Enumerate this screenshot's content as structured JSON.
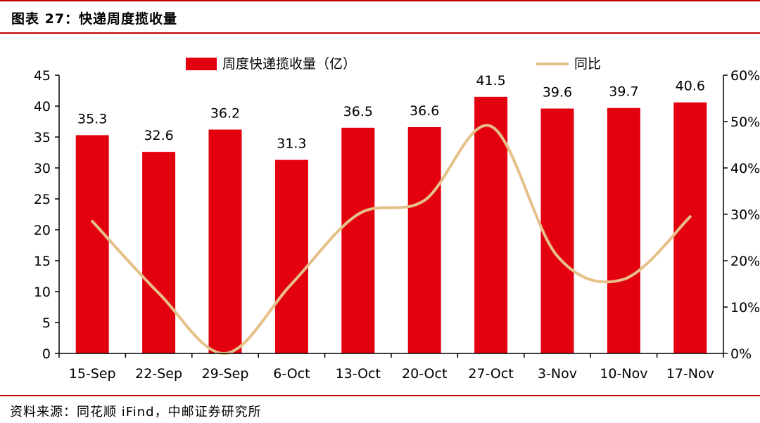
{
  "header": {
    "title": "图表 27：快递周度揽收量"
  },
  "footer": {
    "source": "资料来源：同花顺 iFind，中邮证券研究所"
  },
  "colors": {
    "bar": "#e3000f",
    "line": "#e5c088",
    "rule": "#c00000",
    "axis": "#000000"
  },
  "chart_data": {
    "type": "bar",
    "categories": [
      "15-Sep",
      "22-Sep",
      "29-Sep",
      "6-Oct",
      "13-Oct",
      "20-Oct",
      "27-Oct",
      "3-Nov",
      "10-Nov",
      "17-Nov"
    ],
    "series": [
      {
        "name": "周度快递揽收量（亿）",
        "type": "bar",
        "axis": "left",
        "values": [
          35.3,
          32.6,
          36.2,
          31.3,
          36.5,
          36.6,
          41.5,
          39.6,
          39.7,
          40.6
        ],
        "labels": [
          "35.3",
          "32.6",
          "36.2",
          "31.3",
          "36.5",
          "36.6",
          "41.5",
          "39.6",
          "39.7",
          "40.6"
        ]
      },
      {
        "name": "同比",
        "type": "line",
        "axis": "right",
        "smooth": true,
        "values": [
          28.5,
          13,
          0,
          15,
          30,
          33,
          49,
          21,
          16,
          29.5
        ]
      }
    ],
    "ylim": [
      0,
      45
    ],
    "yticks": [
      "0",
      "5",
      "10",
      "15",
      "20",
      "25",
      "30",
      "35",
      "40",
      "45"
    ],
    "y2lim": [
      0,
      60
    ],
    "y2ticks": [
      "0%",
      "10%",
      "20%",
      "30%",
      "40%",
      "50%",
      "60%"
    ],
    "legend_position": "top",
    "grid": false
  }
}
